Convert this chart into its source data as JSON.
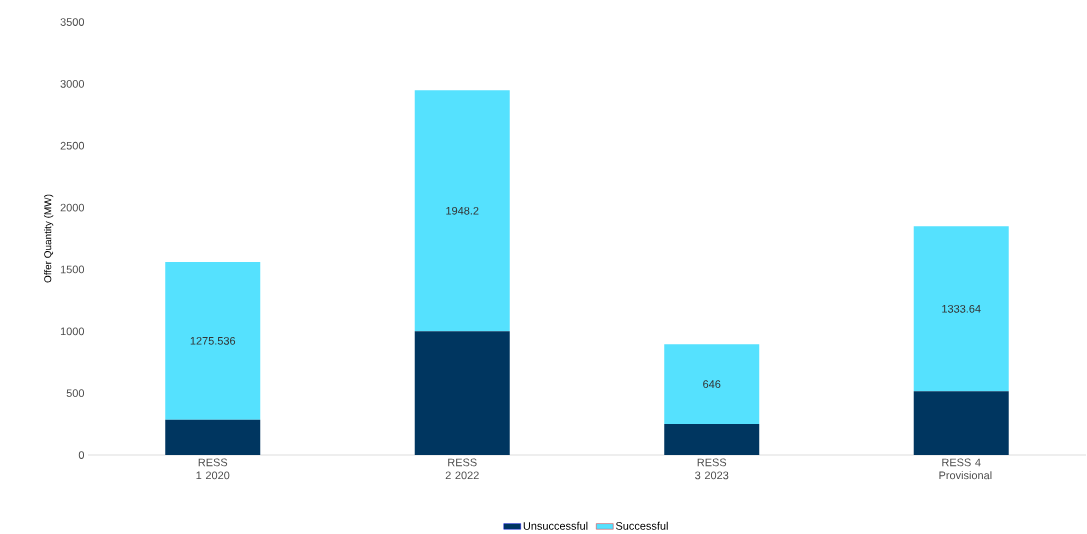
{
  "chart_data": {
    "type": "bar",
    "stacked": true,
    "ylabel": "Offer Quantity (MW)",
    "categories": [
      "RESS 1 2020",
      "RESS 2 2022",
      "RESS 3 2023",
      "RESS 4 Provisional"
    ],
    "series": [
      {
        "name": "Unsuccessful",
        "color": "#003660",
        "values": [
          285,
          1000,
          250,
          515
        ]
      },
      {
        "name": "Successful",
        "color": "#55e1fe",
        "values": [
          1275.536,
          1948.2,
          646,
          1333.64
        ],
        "value_labels": [
          "1275.536",
          "1948.2",
          "646",
          "1333.64"
        ]
      }
    ],
    "ylim": [
      0,
      3500
    ],
    "yticks": [
      0,
      500,
      1000,
      1500,
      2000,
      2500,
      3000,
      3500
    ],
    "grid": false,
    "legend": "bottom"
  }
}
